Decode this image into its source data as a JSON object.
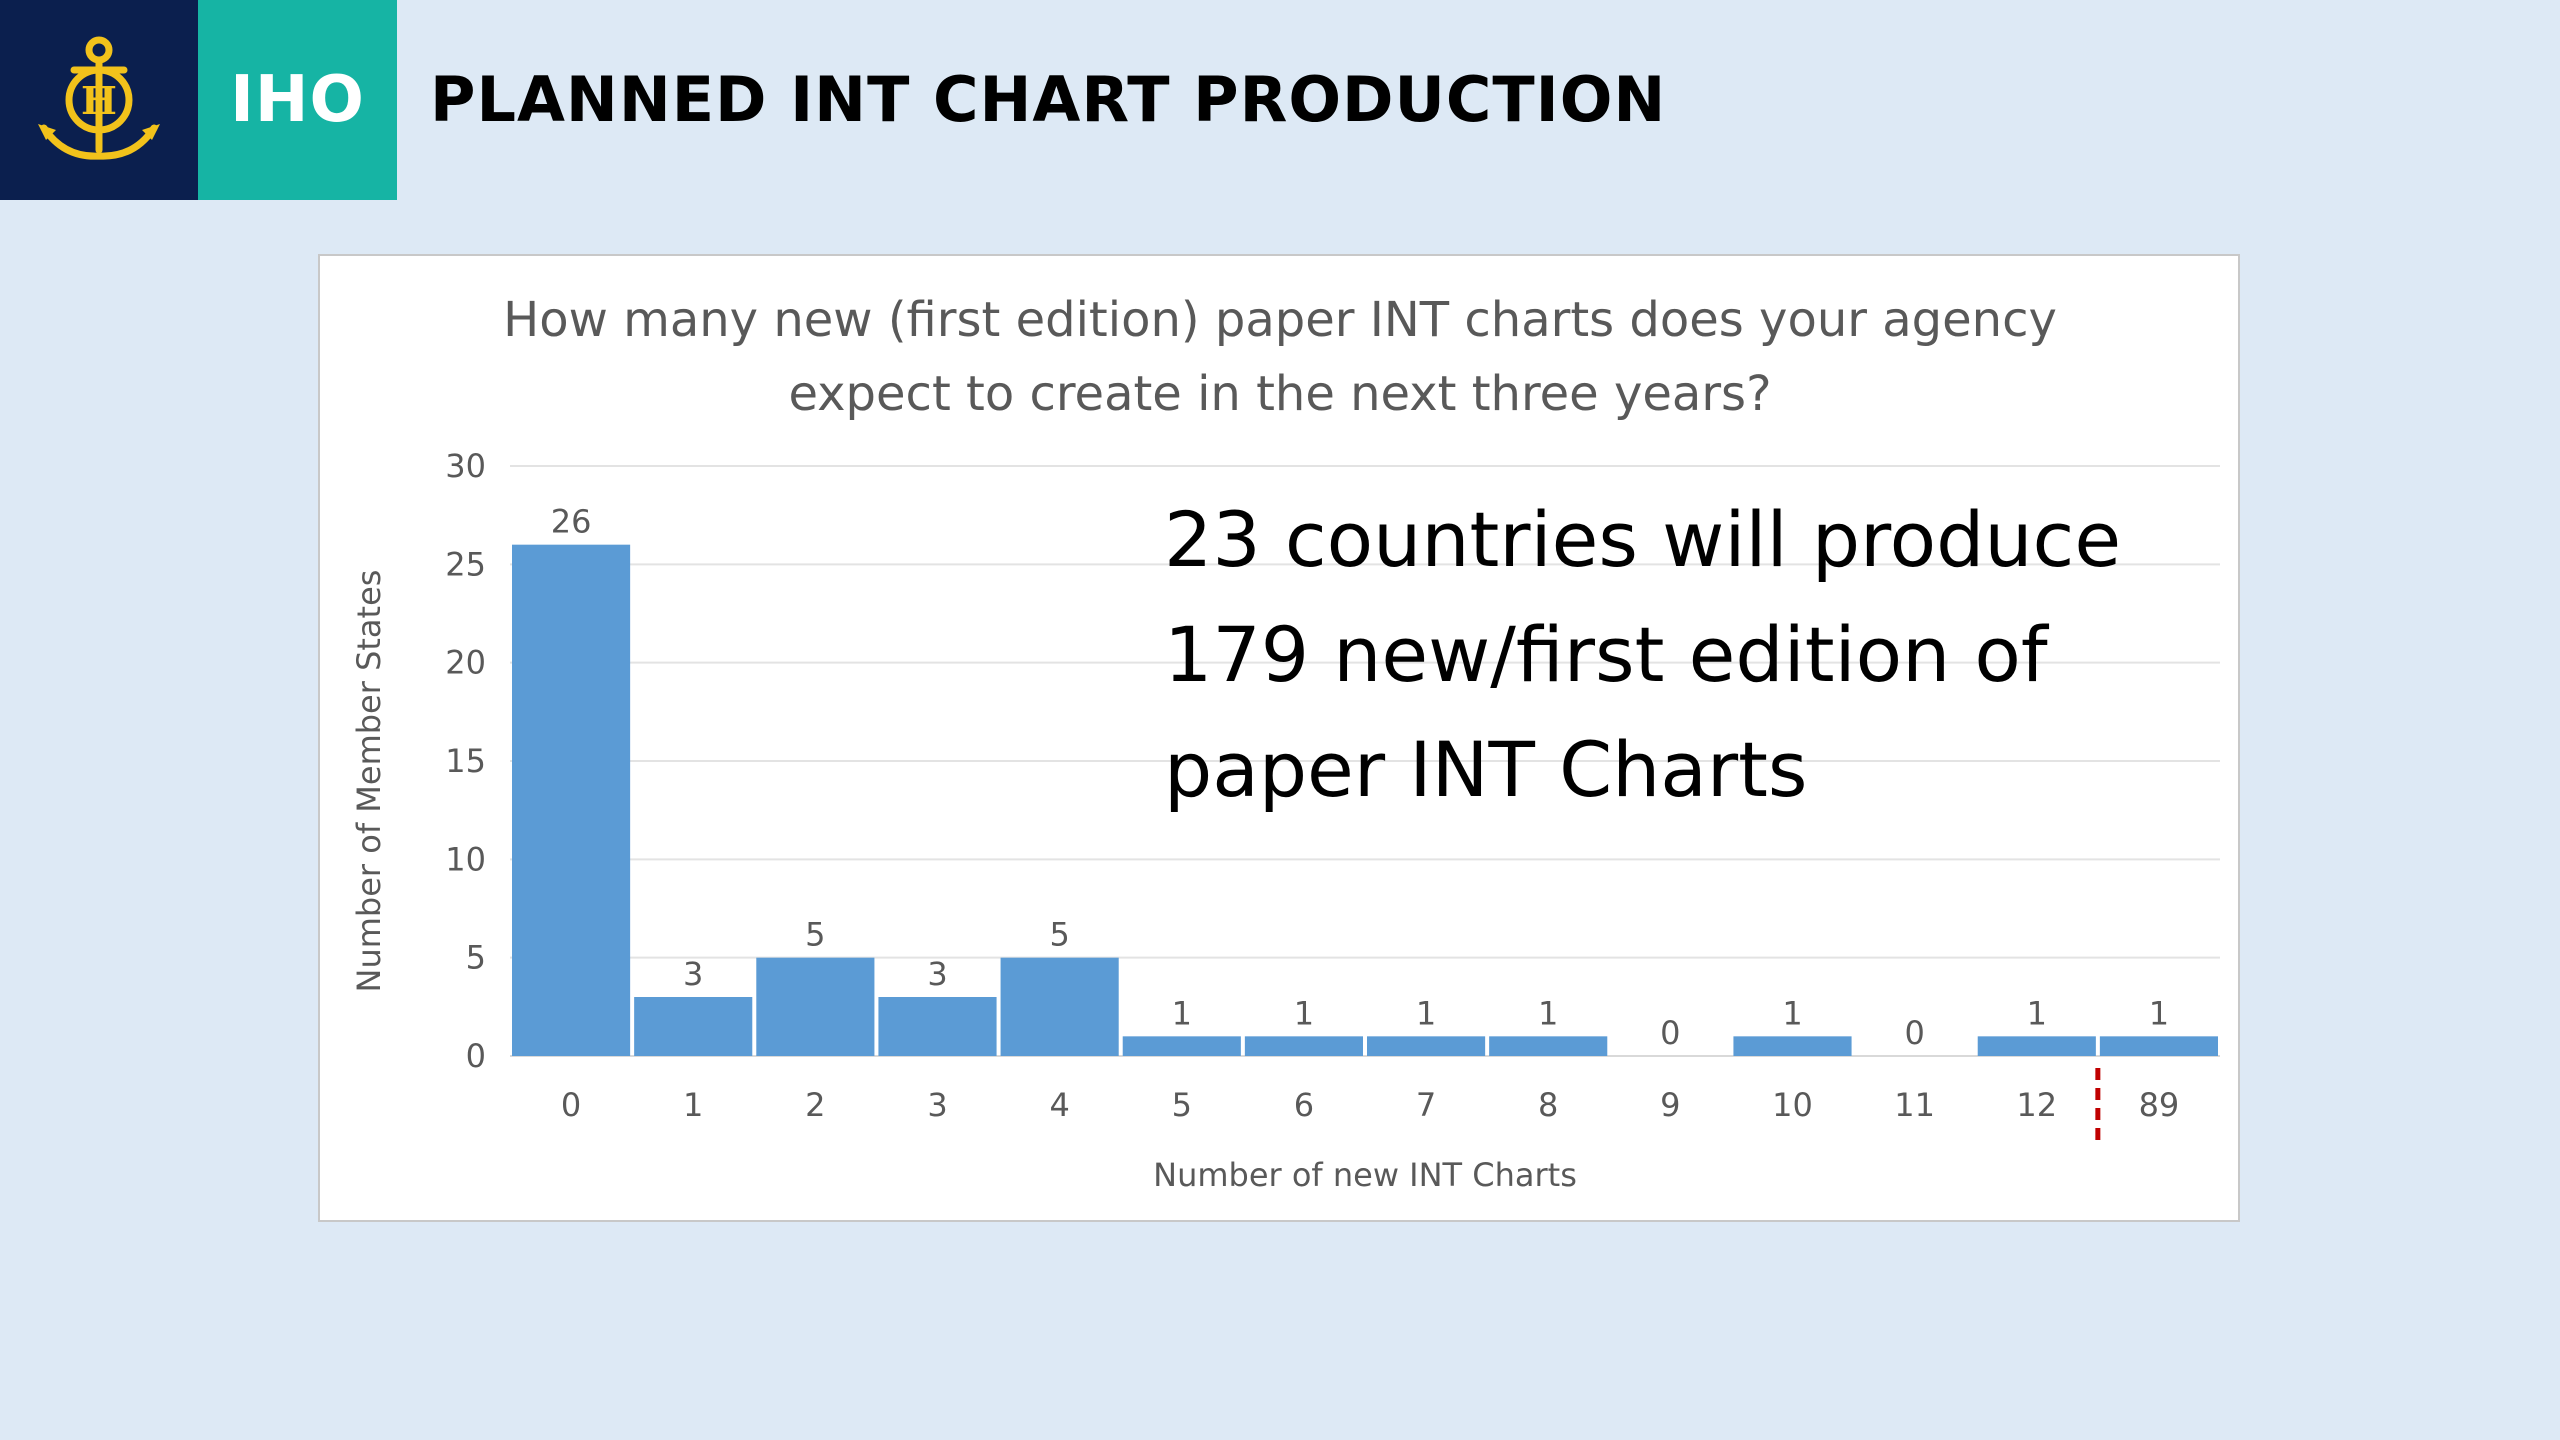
{
  "header": {
    "brand": "IHO",
    "title": "PLANNED INT CHART PRODUCTION"
  },
  "colors": {
    "navy": "#0b1f4e",
    "teal": "#16b4a4",
    "bar": "#5b9bd5",
    "background": "#dde9f5",
    "divider": "#c00000"
  },
  "icons": {
    "logo": "iho-anchor-emblem-icon"
  },
  "callout": {
    "lines": [
      "23 countries will produce",
      "179 new/first edition of",
      "paper INT Charts"
    ]
  },
  "chart_data": {
    "type": "bar",
    "title_lines": [
      "How many new (first edition) paper INT charts does your agency",
      "expect to create in the next three years?"
    ],
    "xlabel": "Number of new INT Charts",
    "ylabel": "Number of Member States",
    "categories": [
      "0",
      "1",
      "2",
      "3",
      "4",
      "5",
      "6",
      "7",
      "8",
      "9",
      "10",
      "11",
      "12",
      "89"
    ],
    "values": [
      26,
      3,
      5,
      3,
      5,
      1,
      1,
      1,
      1,
      0,
      1,
      0,
      1,
      1
    ],
    "ylim": [
      0,
      30
    ],
    "yticks": [
      0,
      5,
      10,
      15,
      20,
      25,
      30
    ],
    "grid": true,
    "legend": "none",
    "axis_break_before": "89"
  }
}
